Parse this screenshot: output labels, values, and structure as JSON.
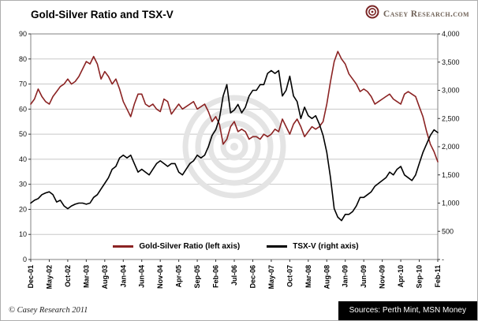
{
  "header": {
    "logo_text": "Casey Research.com"
  },
  "footer": {
    "copyright": "© Casey Research 2011",
    "sources": "Sources: Perth Mint, MSN Money"
  },
  "colors": {
    "grid": "#c8c8c8",
    "plot_border": "#808080",
    "watermark": "#e4e4e4",
    "logo_maroon": "#7a2525"
  },
  "chart_data": {
    "type": "line",
    "title": "Gold-Silver Ratio and TSX-V",
    "x_interval": "monthly",
    "x_tick_every": 5,
    "x_tick_labels": [
      "Dec-01",
      "May-02",
      "Oct-02",
      "Mar-03",
      "Aug-03",
      "Jan-04",
      "Jun-04",
      "Nov-04",
      "Apr-05",
      "Sep-05",
      "Feb-06",
      "Jul-06",
      "Dec-06",
      "May-07",
      "Oct-07",
      "Mar-08",
      "Aug-08",
      "Jan-09",
      "Jun-09",
      "Nov-09",
      "Apr-10",
      "Sep-10",
      "Feb-11"
    ],
    "left_axis": {
      "label": "Gold-Silver Ratio",
      "min": 0,
      "max": 90,
      "step": 10,
      "tick_labels": [
        "0",
        "10",
        "20",
        "30",
        "40",
        "50",
        "60",
        "70",
        "80",
        "90"
      ]
    },
    "right_axis": {
      "label": "TSX-V",
      "min": 0,
      "max": 4000,
      "step": 500,
      "tick_labels": [
        "-",
        "500",
        "1,000",
        "1,500",
        "2,000",
        "2,500",
        "3,000",
        "3,500",
        "4,000"
      ]
    },
    "grid": true,
    "legend_position": "bottom-inside",
    "series": [
      {
        "name": "Gold-Silver Ratio (left axis)",
        "axis": "left",
        "color": "#8b2323",
        "values": [
          62,
          64,
          68,
          65,
          63,
          62,
          65,
          67,
          69,
          70,
          72,
          70,
          71,
          73,
          76,
          79,
          78,
          81,
          78,
          72,
          75,
          73,
          70,
          72,
          68,
          63,
          60,
          57,
          62,
          66,
          66,
          62,
          61,
          62,
          60,
          59,
          64,
          63,
          58,
          60,
          62,
          60,
          61,
          62,
          63,
          60,
          61,
          62,
          59,
          55,
          57,
          54,
          46,
          48,
          53,
          55,
          51,
          52,
          51,
          48,
          49,
          49,
          48,
          50,
          49,
          50,
          52,
          51,
          56,
          53,
          50,
          54,
          56,
          53,
          49,
          51,
          53,
          52,
          53,
          55,
          62,
          71,
          79,
          83,
          80,
          78,
          74,
          72,
          70,
          67,
          68,
          67,
          65,
          62,
          63,
          64,
          65,
          66,
          64,
          63,
          62,
          66,
          67,
          66,
          65,
          61,
          57,
          51,
          46,
          43,
          39
        ]
      },
      {
        "name": "TSX-V (right axis)",
        "axis": "right",
        "color": "#000000",
        "values": [
          1000,
          1050,
          1080,
          1150,
          1180,
          1200,
          1150,
          1020,
          1050,
          950,
          900,
          950,
          980,
          1000,
          1000,
          980,
          1000,
          1100,
          1150,
          1250,
          1350,
          1450,
          1600,
          1650,
          1800,
          1850,
          1800,
          1850,
          1700,
          1550,
          1600,
          1550,
          1500,
          1600,
          1700,
          1750,
          1700,
          1650,
          1700,
          1700,
          1550,
          1500,
          1600,
          1700,
          1750,
          1850,
          1800,
          1850,
          2000,
          2200,
          2300,
          2500,
          2900,
          3100,
          2600,
          2650,
          2750,
          2600,
          2700,
          2900,
          3000,
          3000,
          3100,
          3100,
          3300,
          3350,
          3300,
          3350,
          2900,
          3000,
          3250,
          2900,
          2800,
          2500,
          2700,
          2550,
          2500,
          2550,
          2400,
          2200,
          1900,
          1450,
          900,
          750,
          690,
          800,
          800,
          850,
          950,
          1100,
          1100,
          1150,
          1200,
          1300,
          1350,
          1400,
          1450,
          1550,
          1500,
          1600,
          1650,
          1500,
          1450,
          1400,
          1500,
          1700,
          1900,
          2050,
          2200,
          2300,
          2250
        ]
      }
    ]
  }
}
